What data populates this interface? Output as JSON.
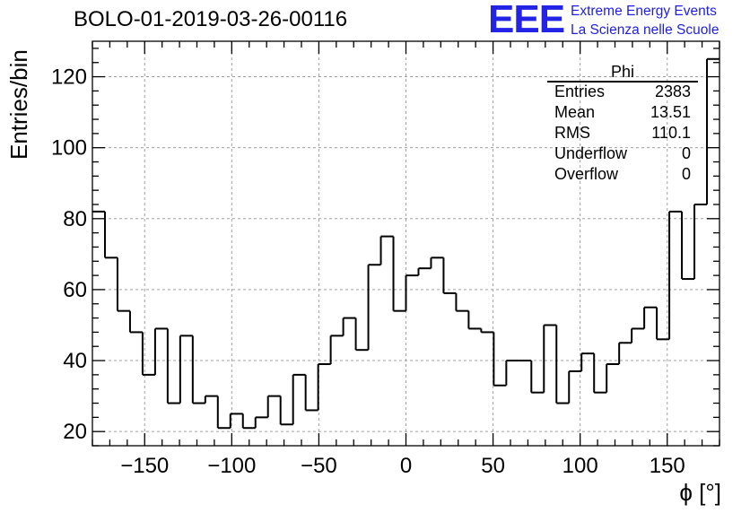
{
  "header": {
    "title": "BOLO-01-2019-03-26-00116"
  },
  "logo": {
    "mark": "EEE",
    "line1": "Extreme Energy Events",
    "line2": "La Scienza nelle Scuole",
    "color": "#1e1ee6"
  },
  "stats_box": {
    "title": "Phi",
    "rows": [
      {
        "name": "Entries",
        "value": "2383"
      },
      {
        "name": "Mean",
        "value": "13.51"
      },
      {
        "name": "RMS",
        "value": "110.1"
      },
      {
        "name": "Underflow",
        "value": "0"
      },
      {
        "name": "Overflow",
        "value": "0"
      }
    ]
  },
  "chart_data": {
    "type": "histogram",
    "title": "BOLO-01-2019-03-26-00116",
    "xlabel": "ϕ [°]",
    "ylabel": "Entries/bin",
    "xlim": [
      -180,
      180
    ],
    "ylim": [
      16,
      130
    ],
    "bin_width": 7.2,
    "x_ticks": [
      -150,
      -100,
      -50,
      0,
      50,
      100,
      150
    ],
    "x_tick_labels": [
      "−150",
      "−100",
      "−50",
      "0",
      "50",
      "100",
      "150"
    ],
    "y_ticks": [
      20,
      40,
      60,
      80,
      100,
      120
    ],
    "y_tick_labels": [
      "20",
      "40",
      "60",
      "80",
      "100",
      "120"
    ],
    "grid": true,
    "line_color": "#000000",
    "grid_color": "#a0a0a0",
    "values": [
      82,
      69,
      54,
      48,
      36,
      49,
      28,
      47,
      28,
      30,
      21,
      25,
      21,
      24,
      30,
      22,
      36,
      26,
      39,
      47,
      52,
      43,
      67,
      75,
      54,
      64,
      66,
      69,
      59,
      54,
      49,
      48,
      33,
      40,
      40,
      31,
      50,
      28,
      37,
      42,
      31,
      39,
      45,
      49,
      55,
      46,
      82,
      63,
      84,
      125
    ]
  }
}
